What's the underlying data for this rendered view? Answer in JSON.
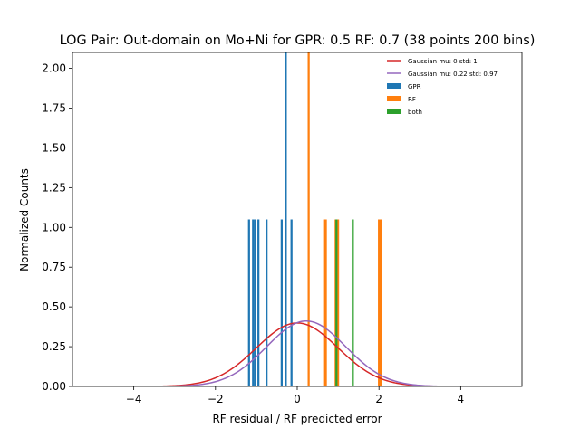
{
  "chart_data": {
    "type": "histogram",
    "title": "LOG Pair: Out-domain on Mo+Ni for GPR: 0.5 RF: 0.7 (38 points 200 bins)",
    "xlabel": "RF residual / RF predicted error",
    "ylabel": "Normalized Counts",
    "xlim": [
      -5.5,
      5.5
    ],
    "ylim": [
      0,
      2.1
    ],
    "xticks": [
      -4,
      -2,
      0,
      2,
      4
    ],
    "yticks": [
      0.0,
      0.25,
      0.5,
      0.75,
      1.0,
      1.25,
      1.5,
      1.75,
      2.0
    ],
    "xtick_labels": [
      "−4",
      "−2",
      "0",
      "2",
      "4"
    ],
    "ytick_labels": [
      "0.00",
      "0.25",
      "0.50",
      "0.75",
      "1.00",
      "1.25",
      "1.50",
      "1.75",
      "2.00"
    ],
    "grid": false,
    "legend_position": "top-right",
    "bar_width": 0.05,
    "histograms": [
      {
        "name": "GPR",
        "color": "#1f77b4",
        "bars": [
          {
            "x": -1.18,
            "height": 1.05
          },
          {
            "x": -1.08,
            "height": 1.05
          },
          {
            "x": -1.03,
            "height": 1.05
          },
          {
            "x": -0.95,
            "height": 1.05
          },
          {
            "x": -0.75,
            "height": 1.05
          },
          {
            "x": -0.38,
            "height": 1.05
          },
          {
            "x": -0.28,
            "height": 2.1
          },
          {
            "x": -0.14,
            "height": 1.05
          }
        ]
      },
      {
        "name": "RF",
        "color": "#ff7f0e",
        "bars": [
          {
            "x": 0.28,
            "height": 2.1
          },
          {
            "x": 0.66,
            "height": 1.05
          },
          {
            "x": 0.7,
            "height": 1.05
          },
          {
            "x": 0.94,
            "height": 1.05
          },
          {
            "x": 1.0,
            "height": 1.05
          },
          {
            "x": 2.0,
            "height": 1.05
          },
          {
            "x": 2.04,
            "height": 1.05
          }
        ]
      },
      {
        "name": "both",
        "color": "#2ca02c",
        "bars": [
          {
            "x": 0.96,
            "height": 1.05
          },
          {
            "x": 1.36,
            "height": 1.05
          }
        ]
      }
    ],
    "curves": [
      {
        "name": "Gaussian mu: 0 std: 1",
        "color": "#d62728",
        "mu": 0,
        "std": 1,
        "x_range": [
          -5,
          5
        ]
      },
      {
        "name": "Gaussian mu: 0.22 std: 0.97",
        "color": "#9467bd",
        "mu": 0.22,
        "std": 0.97,
        "x_range": [
          -5,
          5
        ]
      }
    ]
  }
}
